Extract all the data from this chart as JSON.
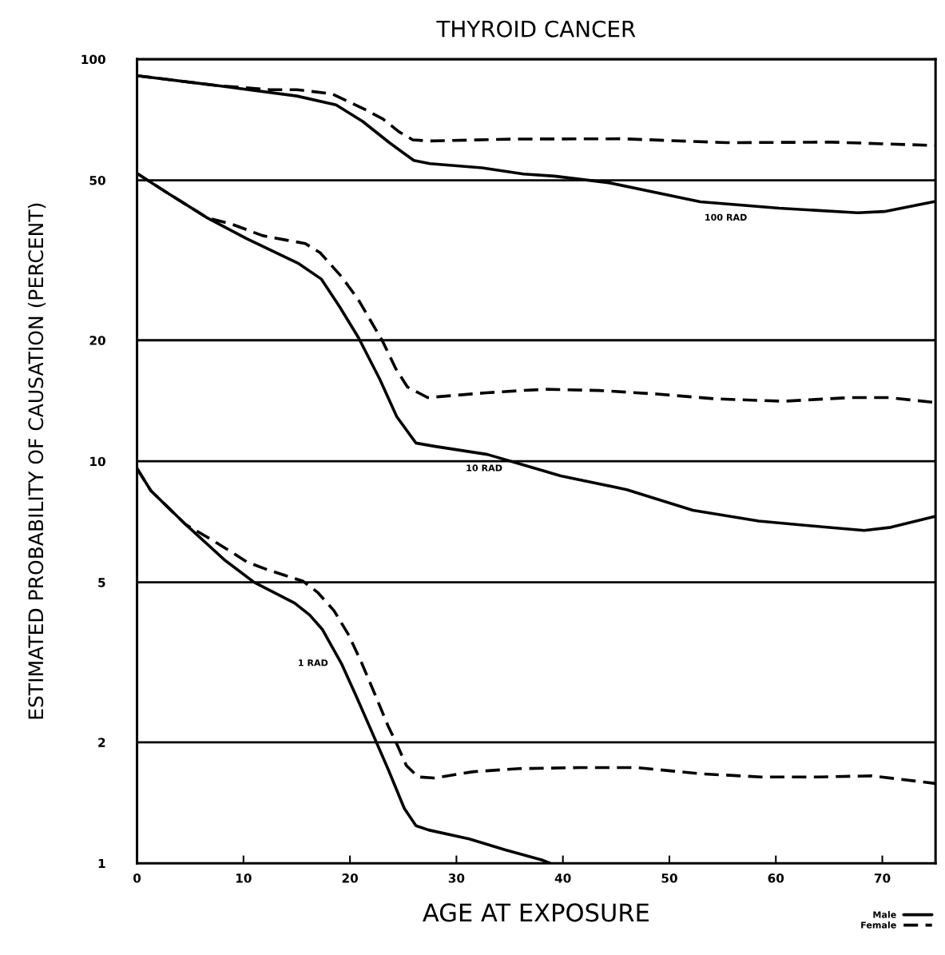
{
  "chart_data": {
    "type": "line",
    "title": "THYROID CANCER",
    "xlabel": "AGE AT EXPOSURE",
    "ylabel": "ESTIMATED PROBABILITY OF CAUSATION (PERCENT)",
    "log": "y",
    "xlim": [
      0,
      75
    ],
    "ylim": [
      1,
      100
    ],
    "xticks": [
      0,
      10,
      20,
      30,
      40,
      50,
      60,
      70
    ],
    "yticks": [
      1,
      2,
      5,
      10,
      20,
      50,
      100
    ],
    "grid": "y",
    "legend": "bottom right",
    "series": [
      {
        "name": "Male",
        "color": "#000000",
        "line_style": "solid",
        "x": [
          0,
          7.5,
          15,
          18.7,
          21.2,
          23.7,
          26,
          27.5,
          32.4,
          36.3,
          39.2,
          44.3,
          52.9,
          60.3,
          67.7,
          70.2,
          75
        ],
        "values": [
          91,
          86,
          81,
          77,
          70,
          62,
          56,
          55,
          53.7,
          51.8,
          51.2,
          49.3,
          44.2,
          42.6,
          41.5,
          41.8,
          44.3
        ]
      },
      {
        "name": "Female",
        "color": "#000000",
        "line_style": "dashed",
        "x": [
          0,
          7.5,
          12.5,
          15,
          18.3,
          21.4,
          23.1,
          24.6,
          25.9,
          27.4,
          35.6,
          45.6,
          55.4,
          65.2,
          75
        ],
        "values": [
          91,
          86,
          84,
          84,
          82,
          75,
          71,
          66,
          63,
          62.6,
          63.3,
          63.4,
          62,
          62.2,
          61
        ]
      },
      {
        "color": "#000000",
        "line_style": "solid",
        "x": [
          0,
          2.8,
          6.6,
          10.3,
          15.2,
          17.3,
          19,
          20.8,
          22.8,
          24.4,
          26.2,
          27.9,
          32.9,
          36.8,
          39.8,
          46,
          52.2,
          58.4,
          64.6,
          68.3,
          70.8,
          75
        ],
        "values": [
          52,
          46.6,
          40.3,
          35.8,
          31,
          28.4,
          24.3,
          20.3,
          16,
          12.9,
          11.1,
          10.9,
          10.4,
          9.7,
          9.2,
          8.5,
          7.55,
          7.1,
          6.86,
          6.73,
          6.85,
          7.3
        ]
      },
      {
        "color": "#000000",
        "line_style": "dashed",
        "x": [
          0,
          2.8,
          6.6,
          9,
          11.8,
          14,
          15.8,
          17.2,
          19.2,
          20.8,
          23.1,
          24.3,
          25.4,
          27.3,
          32.8,
          36.2,
          38.4,
          43.4,
          48.8,
          54.3,
          60.7,
          66.9,
          70.6,
          75
        ],
        "values": [
          52,
          46.6,
          40.3,
          38.8,
          36.4,
          35.5,
          34.8,
          33,
          28.8,
          25.2,
          19.8,
          17,
          15.3,
          14.4,
          14.8,
          15,
          15.1,
          15,
          14.7,
          14.3,
          14.1,
          14.4,
          14.4,
          14
        ]
      },
      {
        "color": "#000000",
        "line_style": "solid",
        "x": [
          0,
          1.3,
          4.6,
          8.3,
          11,
          14.8,
          16.2,
          17.4,
          19.2,
          20.6,
          22.1,
          23.6,
          25.1,
          26.2,
          27.4,
          31.2,
          34.6,
          38,
          38.8
        ],
        "values": [
          9.6,
          8.45,
          6.95,
          5.66,
          5.0,
          4.44,
          4.15,
          3.82,
          3.14,
          2.6,
          2.11,
          1.71,
          1.37,
          1.24,
          1.21,
          1.15,
          1.08,
          1.02,
          1.0
        ]
      },
      {
        "color": "#000000",
        "line_style": "dashed",
        "x": [
          0,
          1.3,
          4.6,
          7.1,
          8.8,
          10.3,
          12.2,
          13.9,
          15.6,
          17,
          18.5,
          19.9,
          21.1,
          22.3,
          23.6,
          24.4,
          25.3,
          26.4,
          27.9,
          31.6,
          35.9,
          41.6,
          47,
          52.9,
          58.6,
          64,
          69,
          75
        ],
        "values": [
          9.6,
          8.45,
          6.95,
          6.36,
          5.96,
          5.62,
          5.38,
          5.2,
          5.03,
          4.71,
          4.25,
          3.69,
          3.15,
          2.65,
          2.19,
          1.98,
          1.75,
          1.64,
          1.63,
          1.69,
          1.72,
          1.73,
          1.73,
          1.67,
          1.64,
          1.64,
          1.65,
          1.58
        ]
      }
    ],
    "annotations": [
      {
        "text": "100 RAD",
        "x": 55.3,
        "y": 43.7
      },
      {
        "text": "10 RAD",
        "x": 32.6,
        "y": 10.4
      },
      {
        "text": "1 RAD",
        "x": 19.2,
        "y": 3.14
      }
    ]
  }
}
